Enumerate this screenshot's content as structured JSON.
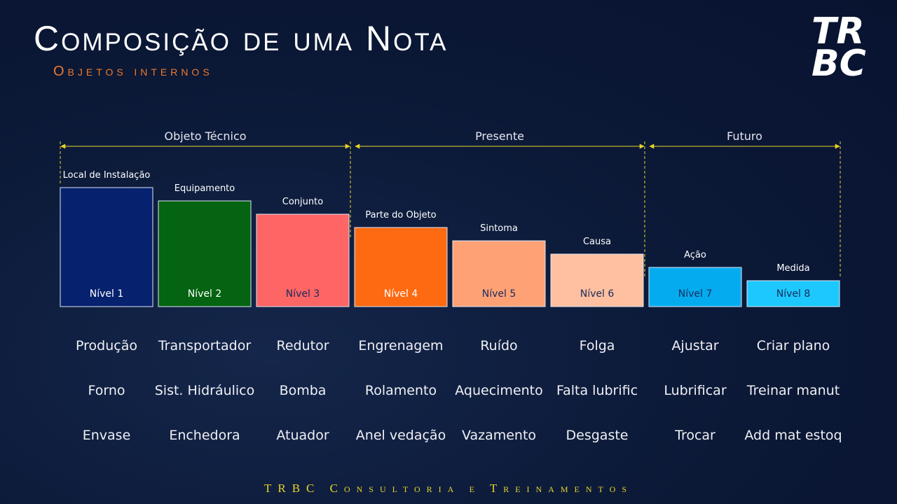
{
  "header": {
    "title": "Composição de uma Nota",
    "subtitle": "Objetos internos"
  },
  "logo": {
    "lines": [
      "TR",
      "BC"
    ]
  },
  "groups": [
    {
      "label": "Objeto Técnico",
      "levels": [
        {
          "name": "Local de Instalação",
          "label": "Nível 1",
          "color": "#06216e",
          "examples": [
            "Produção",
            "Forno",
            "Envase"
          ]
        },
        {
          "name": "Equipamento",
          "label": "Nível 2",
          "color": "#046411",
          "examples": [
            "Transportador",
            "Sist. Hidráulico",
            "Enchedora"
          ]
        },
        {
          "name": "Conjunto",
          "label": "Nível 3",
          "color": "#fe6565",
          "examples": [
            "Redutor",
            "Bomba",
            "Atuador"
          ]
        }
      ]
    },
    {
      "label": "Presente",
      "levels": [
        {
          "name": "Parte do Objeto",
          "label": "Nível 4",
          "color": "#fe6a12",
          "examples": [
            "Engrenagem",
            "Rolamento",
            "Anel vedação"
          ]
        },
        {
          "name": "Sintoma",
          "label": "Nível 5",
          "color": "#fea276",
          "examples": [
            "Ruído",
            "Aquecimento",
            "Vazamento"
          ]
        },
        {
          "name": "Causa",
          "label": "Nível 6",
          "color": "#fec0a0",
          "examples": [
            "Folga",
            "Falta lubrific",
            "Desgaste"
          ]
        }
      ]
    },
    {
      "label": "Futuro",
      "levels": [
        {
          "name": "Ação",
          "label": "Nível 7",
          "color": "#04acef",
          "examples": [
            "Ajustar",
            "Lubrificar",
            "Trocar"
          ]
        },
        {
          "name": "Medida",
          "label": "Nível 8",
          "color": "#1cc8fe",
          "examples": [
            "Criar plano",
            "Treinar manut",
            "Add mat estoq"
          ]
        }
      ]
    }
  ],
  "footer": "TRBC Consultoria e Treinamentos"
}
